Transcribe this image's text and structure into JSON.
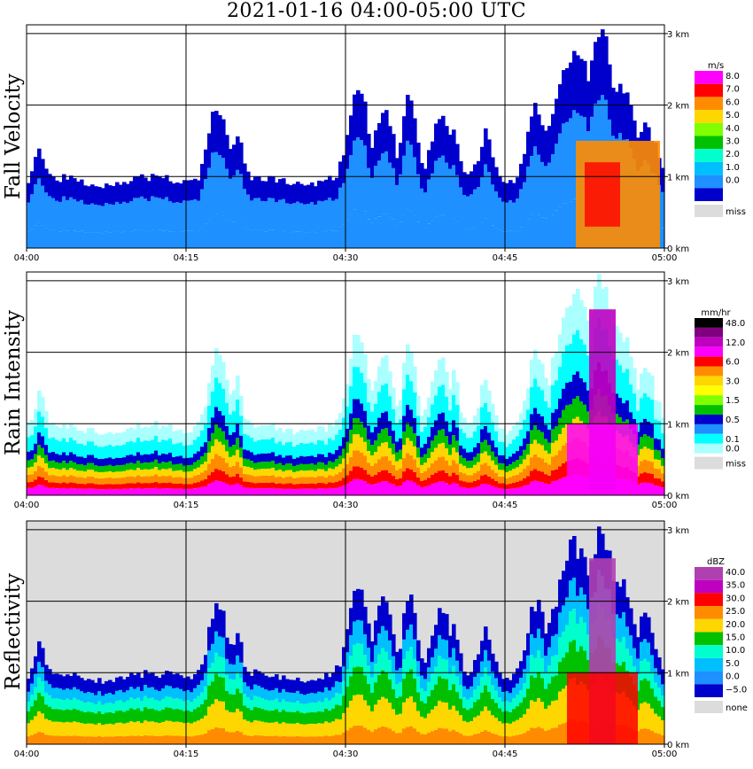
{
  "title": "2021-01-16   04:00-05:00 UTC",
  "x_ticks": [
    "04:00",
    "04:15",
    "04:30",
    "04:45",
    "05:00"
  ],
  "height_ticks": [
    "0 km",
    "1 km",
    "2 km",
    "3 km"
  ],
  "chart_data": [
    {
      "type": "heatmap",
      "ylabel": "Fall Velocity",
      "legend_unit": "m/s",
      "x_range": [
        "04:00",
        "05:00"
      ],
      "y_range_km": [
        0,
        3.1
      ],
      "grid": true,
      "legend_entries": [
        {
          "label": "8.0",
          "color": "#ff00ff"
        },
        {
          "label": "7.0",
          "color": "#ff0000"
        },
        {
          "label": "6.0",
          "color": "#ff8c00"
        },
        {
          "label": "5.0",
          "color": "#ffd700"
        },
        {
          "label": "4.0",
          "color": "#7fff00"
        },
        {
          "label": "3.0",
          "color": "#00c000"
        },
        {
          "label": "2.0",
          "color": "#00ffcc"
        },
        {
          "label": "1.0",
          "color": "#00bfff"
        },
        {
          "label": "0.0",
          "color": "#1e90ff"
        },
        {
          "label": "",
          "color": "#0000cd"
        },
        {
          "label": "miss",
          "color": "#dcdcdc"
        }
      ]
    },
    {
      "type": "heatmap",
      "ylabel": "Rain Intensity",
      "legend_unit": "mm/hr",
      "x_range": [
        "04:00",
        "05:00"
      ],
      "y_range_km": [
        0,
        3.1
      ],
      "grid": true,
      "legend_entries": [
        {
          "label": "48.0",
          "color": "#000000"
        },
        {
          "label": "",
          "color": "#800080"
        },
        {
          "label": "12.0",
          "color": "#c000c0"
        },
        {
          "label": "",
          "color": "#ff00ff"
        },
        {
          "label": "6.0",
          "color": "#ff0000"
        },
        {
          "label": "",
          "color": "#ff8c00"
        },
        {
          "label": "3.0",
          "color": "#ffd700"
        },
        {
          "label": "",
          "color": "#ffff00"
        },
        {
          "label": "1.5",
          "color": "#7fff00"
        },
        {
          "label": "",
          "color": "#00c000"
        },
        {
          "label": "0.5",
          "color": "#0000cd"
        },
        {
          "label": "",
          "color": "#1e90ff"
        },
        {
          "label": "0.1",
          "color": "#00ffff"
        },
        {
          "label": "0.0",
          "color": "#aaffff"
        },
        {
          "label": "miss",
          "color": "#dcdcdc"
        }
      ]
    },
    {
      "type": "heatmap",
      "ylabel": "Reflectivity",
      "legend_unit": "dBZ",
      "x_range": [
        "04:00",
        "05:00"
      ],
      "y_range_km": [
        0,
        3.1
      ],
      "grid": true,
      "legend_entries": [
        {
          "label": "40.0",
          "color": "#b040b0"
        },
        {
          "label": "35.0",
          "color": "#c000c0"
        },
        {
          "label": "30.0",
          "color": "#ff0000"
        },
        {
          "label": "25.0",
          "color": "#ff8c00"
        },
        {
          "label": "20.0",
          "color": "#ffd700"
        },
        {
          "label": "15.0",
          "color": "#00c000"
        },
        {
          "label": "10.0",
          "color": "#00ffcc"
        },
        {
          "label": "5.0",
          "color": "#00bfff"
        },
        {
          "label": "0.0",
          "color": "#1e90ff"
        },
        {
          "label": "−5.0",
          "color": "#0000cd"
        },
        {
          "label": "none",
          "color": "#dcdcdc"
        }
      ]
    }
  ]
}
